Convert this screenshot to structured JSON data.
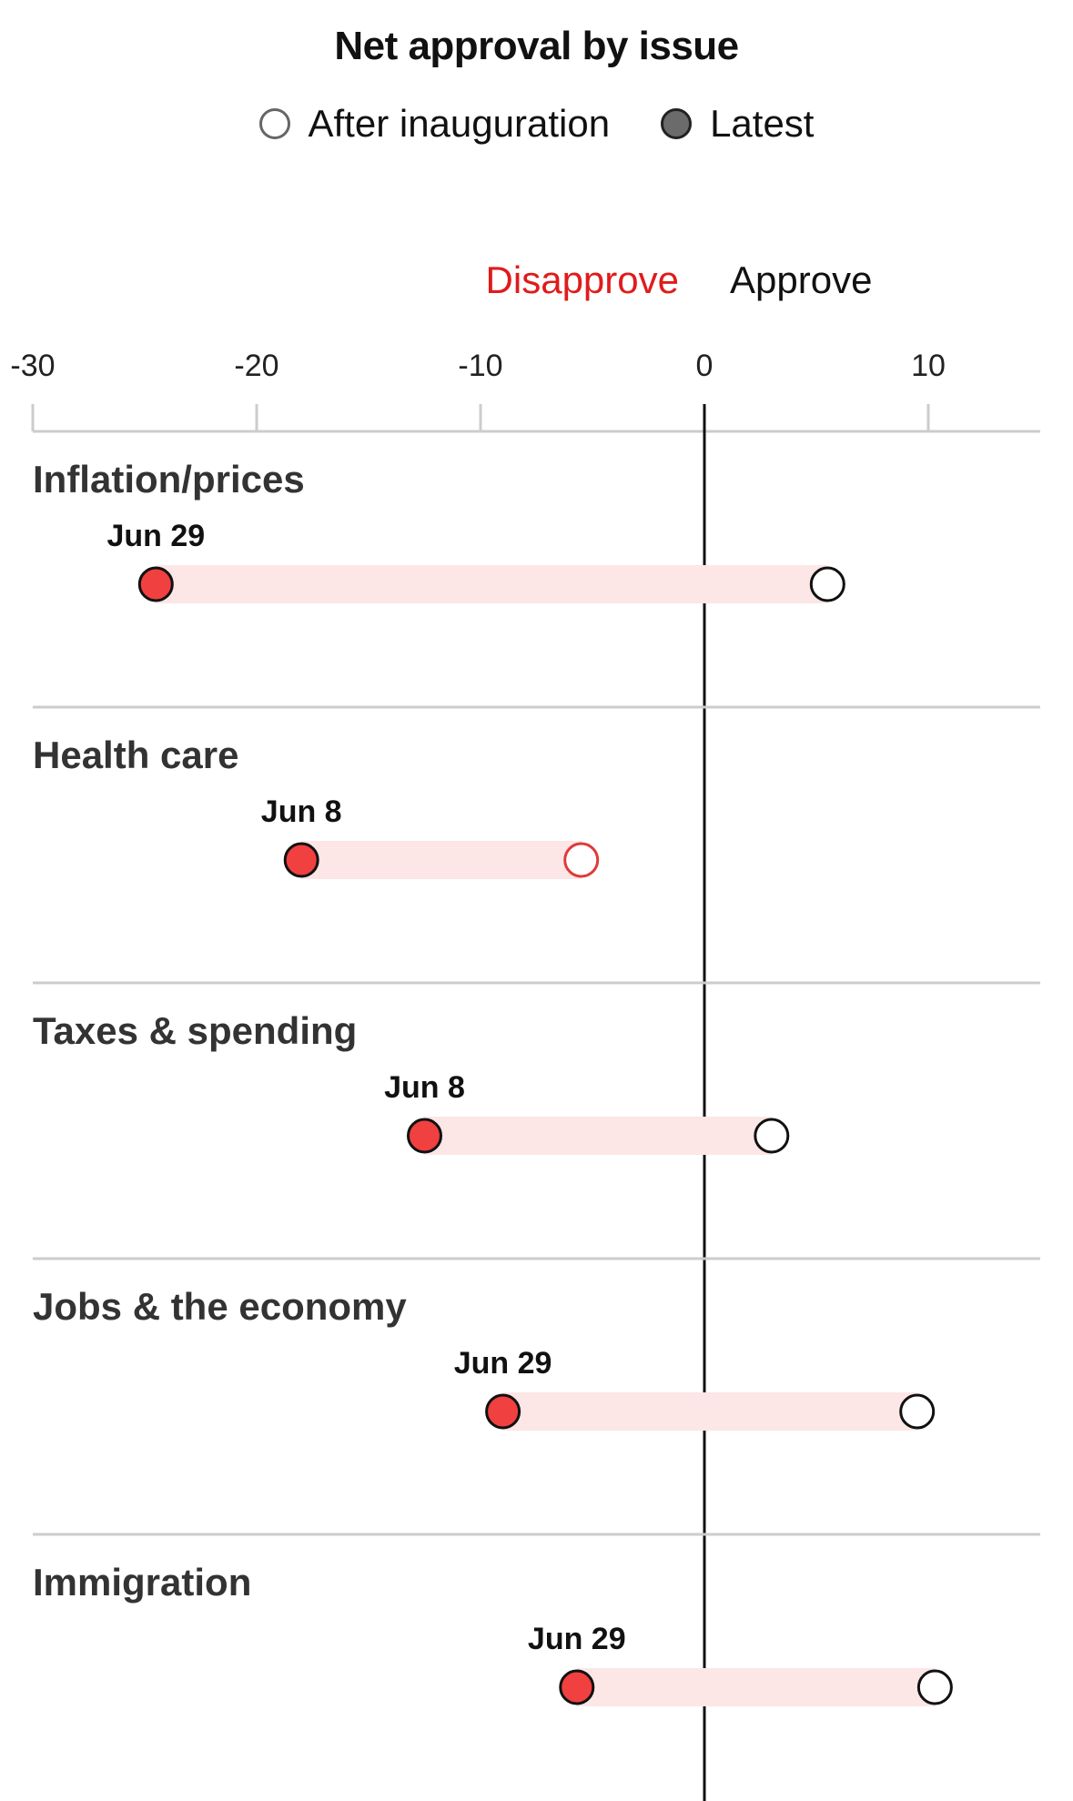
{
  "chart_data": {
    "type": "dumbbell",
    "title": "Net approval by issue",
    "legend": [
      {
        "name": "After inauguration",
        "style": "open"
      },
      {
        "name": "Latest",
        "style": "filled"
      }
    ],
    "direction_labels": {
      "negative": {
        "text": "Disapprove",
        "color": "#e01b1b"
      },
      "positive": {
        "text": "Approve",
        "color": "#111111"
      }
    },
    "xlim": [
      -30,
      15
    ],
    "xticks": [
      -30,
      -20,
      -10,
      0,
      10
    ],
    "categories": [
      "Inflation/prices",
      "Health care",
      "Taxes & spending",
      "Jobs & the economy",
      "Immigration"
    ],
    "series": [
      {
        "name": "After inauguration",
        "values": [
          5.5,
          -5.5,
          3,
          9.5,
          10.3
        ]
      },
      {
        "name": "Latest",
        "values": [
          -24.5,
          -18,
          -12.5,
          -9,
          -5.7
        ]
      }
    ],
    "latest_dates": [
      "Jun 29",
      "Jun 8",
      "Jun 8",
      "Jun 29",
      "Jun 29"
    ],
    "colors": {
      "latest_fill": "#f04040",
      "open_fill": "#ffffff",
      "bar_fill": "#fde6e6",
      "zero_line": "#111111",
      "grid": "#cccccc",
      "open_negative_stroke": "#e03a3a"
    }
  }
}
